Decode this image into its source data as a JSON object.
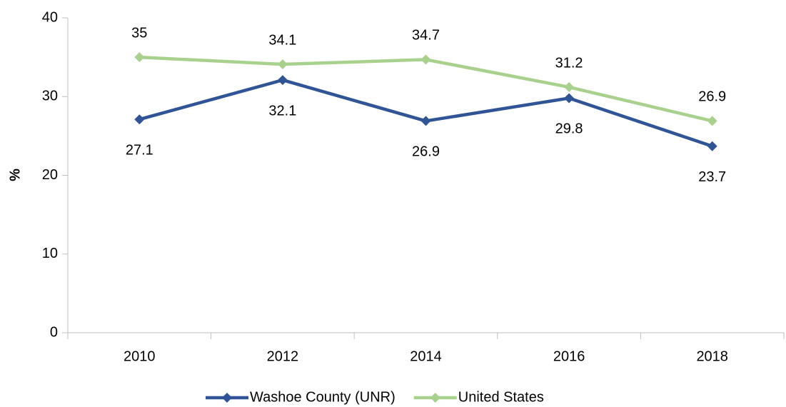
{
  "chart_data": {
    "type": "line",
    "y_label": "%",
    "categories": [
      "2010",
      "2012",
      "2014",
      "2016",
      "2018"
    ],
    "series": [
      {
        "name": "Washoe County (UNR)",
        "color": "#2f5597",
        "values": [
          27.1,
          32.1,
          26.9,
          29.8,
          23.7
        ]
      },
      {
        "name": "United States",
        "color": "#a9d18e",
        "values": [
          35,
          34.1,
          34.7,
          31.2,
          26.9
        ]
      }
    ],
    "ylim": [
      0,
      40
    ],
    "yticks": [
      0,
      10,
      20,
      30,
      40
    ],
    "grid": false,
    "legend": "bottom"
  }
}
